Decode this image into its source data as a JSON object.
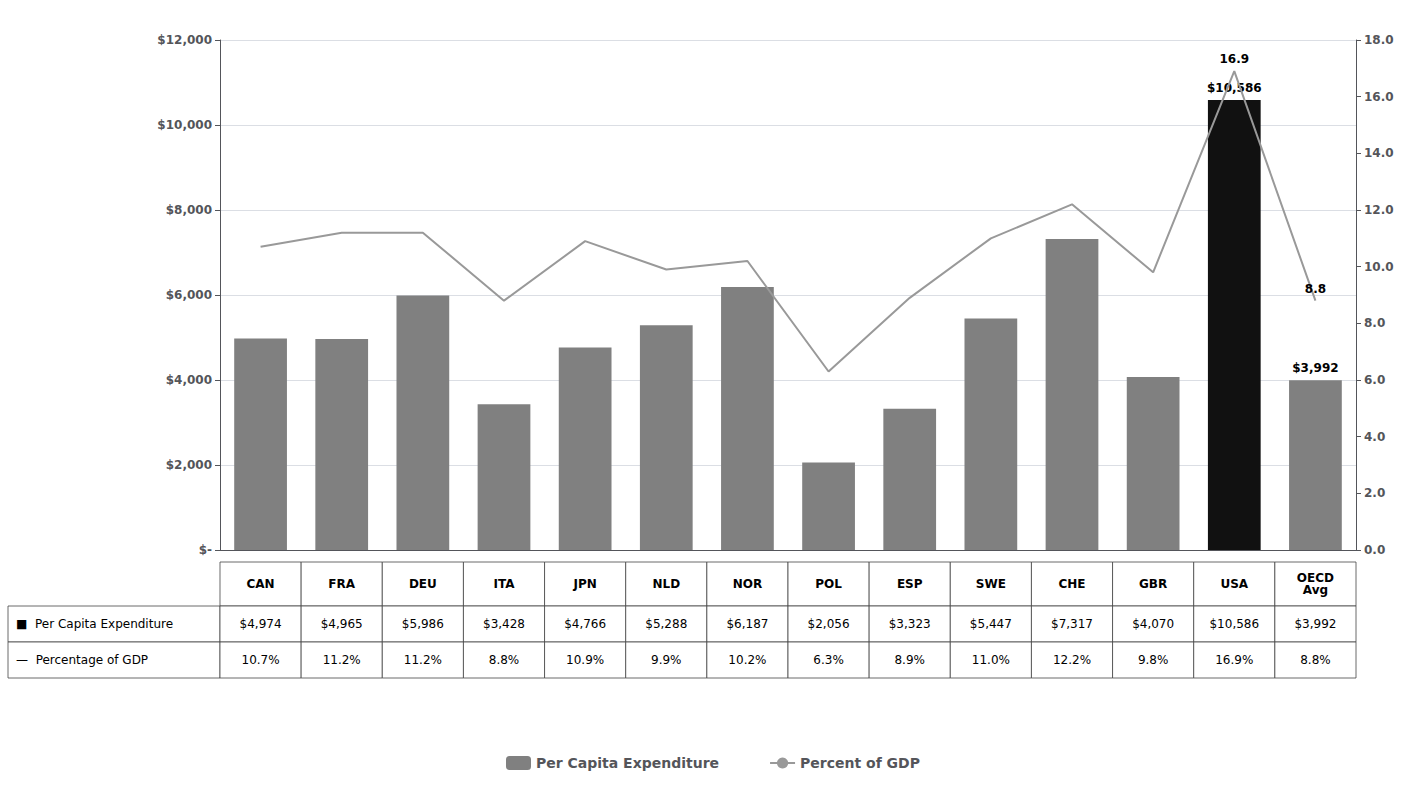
{
  "chart_data": {
    "type": "bar",
    "categories": [
      "CAN",
      "FRA",
      "DEU",
      "ITA",
      "JPN",
      "NLD",
      "NOR",
      "POL",
      "ESP",
      "SWE",
      "CHE",
      "GBR",
      "USA",
      "OECD\nAvg"
    ],
    "series": [
      {
        "name": "Per Capita Expenditure",
        "type": "bar",
        "color": "#808080",
        "colors": [
          "#808080",
          "#808080",
          "#808080",
          "#808080",
          "#808080",
          "#808080",
          "#808080",
          "#808080",
          "#808080",
          "#808080",
          "#808080",
          "#808080",
          "#111111",
          "#808080"
        ],
        "values": [
          4974,
          4965,
          5986,
          3428,
          4766,
          5288,
          6187,
          2056,
          3323,
          5447,
          7317,
          4070,
          10586,
          3992
        ]
      },
      {
        "name": "Percent of GDP",
        "type": "line",
        "axis": "y2",
        "color": "#999999",
        "values": [
          10.7,
          11.2,
          11.2,
          8.8,
          10.9,
          9.9,
          10.2,
          6.3,
          8.9,
          11.0,
          12.2,
          9.8,
          16.9,
          8.8
        ]
      }
    ],
    "ylim": [
      0,
      12000
    ],
    "yticks": [
      {
        "value": 0,
        "label": "$-"
      },
      {
        "value": 2000,
        "label": "$2,000"
      },
      {
        "value": 4000,
        "label": "$4,000"
      },
      {
        "value": 6000,
        "label": "$6,000"
      },
      {
        "value": 8000,
        "label": "$8,000"
      },
      {
        "value": 10000,
        "label": "$10,000"
      },
      {
        "value": 12000,
        "label": "$12,000"
      }
    ],
    "y2lim": [
      0,
      18.0
    ],
    "y2ticks": [
      {
        "value": 0.0,
        "label": "0.0"
      },
      {
        "value": 2.0,
        "label": "2.0"
      },
      {
        "value": 4.0,
        "label": "4.0"
      },
      {
        "value": 6.0,
        "label": "6.0"
      },
      {
        "value": 8.0,
        "label": "8.0"
      },
      {
        "value": 10.0,
        "label": "10.0"
      },
      {
        "value": 12.0,
        "label": "12.0"
      },
      {
        "value": 14.0,
        "label": "14.0"
      },
      {
        "value": 16.0,
        "label": "16.0"
      },
      {
        "value": 18.0,
        "label": "18.0"
      }
    ],
    "grid": true,
    "legend": "bottom",
    "tick_labels": "y",
    "annotations": [
      {
        "text": "$10,586",
        "category": "USA",
        "series": "Per Capita Expenditure"
      },
      {
        "text": "16.9",
        "category": "USA",
        "series": "Percent of GDP"
      },
      {
        "text": "$3,992",
        "category": "OECD\nAvg",
        "series": "Per Capita Expenditure"
      },
      {
        "text": "8.8",
        "category": "OECD\nAvg",
        "series": "Percent of GDP"
      }
    ],
    "table": {
      "row_labels": [
        "■  Per Capita Expenditure",
        "—  Percentage of GDP"
      ],
      "rows": [
        [
          "$4,974",
          "$4,965",
          "$5,986",
          "$3,428",
          "$4,766",
          "$5,288",
          "$6,187",
          "$2,056",
          "$3,323",
          "$5,447",
          "$7,317",
          "$4,070",
          "$10,586",
          "$3,992"
        ],
        [
          "10.7%",
          "11.2%",
          "11.2%",
          "8.8%",
          "10.9%",
          "9.9%",
          "10.2%",
          "6.3%",
          "8.9%",
          "11.0%",
          "12.2%",
          "9.8%",
          "16.9%",
          "8.8%"
        ]
      ]
    }
  }
}
